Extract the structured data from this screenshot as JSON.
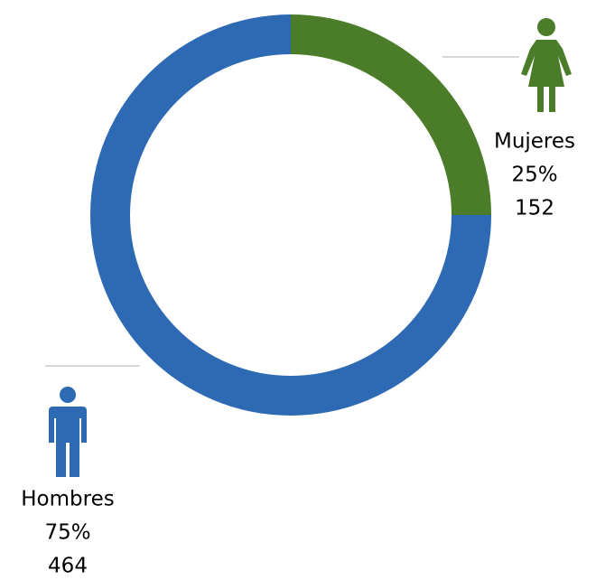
{
  "chart_data": {
    "type": "donut",
    "categories": [
      "Mujeres",
      "Hombres"
    ],
    "values": [
      25,
      75
    ],
    "value_labels": [
      "25%",
      "75%"
    ],
    "counts": [
      152,
      464
    ],
    "colors": [
      "#4a7c2a",
      "#2e6ab3"
    ]
  }
}
